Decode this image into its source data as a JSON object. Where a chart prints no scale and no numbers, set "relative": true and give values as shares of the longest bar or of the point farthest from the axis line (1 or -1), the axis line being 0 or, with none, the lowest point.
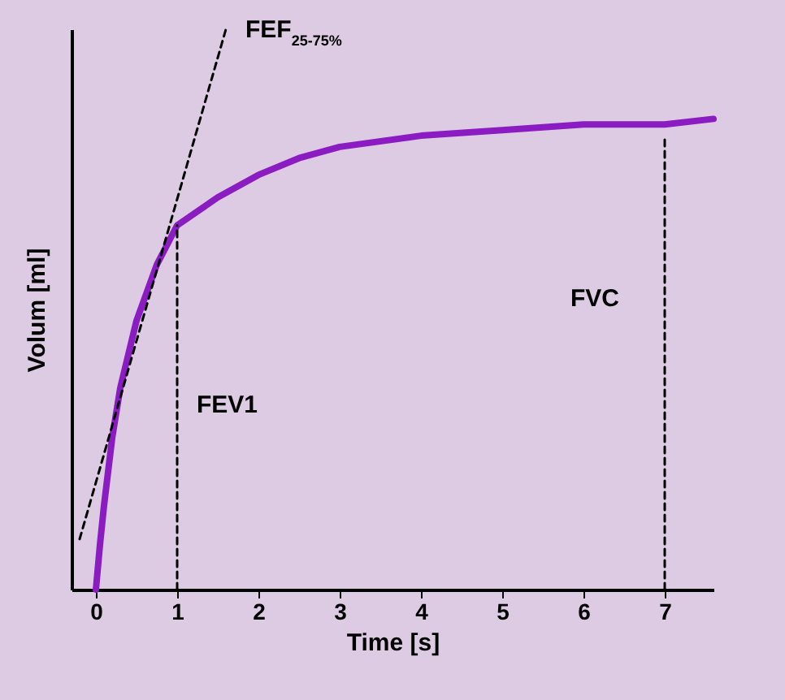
{
  "chart_data": {
    "type": "line",
    "xlabel": "Time [s]",
    "ylabel": "Volum [ml]",
    "relative": true,
    "xlim": [
      -0.3,
      7.6
    ],
    "xticks": [
      0,
      1,
      2,
      3,
      4,
      5,
      6,
      7
    ],
    "series": [
      {
        "color": "#8a1cc2",
        "line_style": "solid",
        "x": [
          0,
          0.05,
          0.1,
          0.2,
          0.3,
          0.5,
          0.75,
          1,
          1.5,
          2,
          2.5,
          3,
          4,
          5,
          6,
          7,
          7.6
        ],
        "values": [
          0,
          0.08,
          0.15,
          0.27,
          0.36,
          0.48,
          0.58,
          0.65,
          0.7,
          0.74,
          0.77,
          0.79,
          0.81,
          0.82,
          0.83,
          0.83,
          0.84
        ]
      },
      {
        "color": "#000000",
        "line_style": "dashed",
        "x": [
          -0.2,
          1.6
        ],
        "values": [
          0.09,
          1
        ]
      },
      {
        "color": "#000000",
        "line_style": "dashed",
        "x": [
          1,
          1
        ],
        "values": [
          0,
          0.65
        ]
      },
      {
        "color": "#000000",
        "line_style": "dashed",
        "x": [
          7,
          7,
          7
        ],
        "values": [
          0,
          0.52,
          0.81
        ]
      }
    ],
    "annotations": [
      {
        "text": "FEF$_{25-75%}$",
        "x": 1.6,
        "y": 1
      },
      {
        "text": "FEV1",
        "x": 1,
        "y": 0.33
      },
      {
        "text": "FVC",
        "x": 7,
        "y": 0.52
      }
    ]
  }
}
